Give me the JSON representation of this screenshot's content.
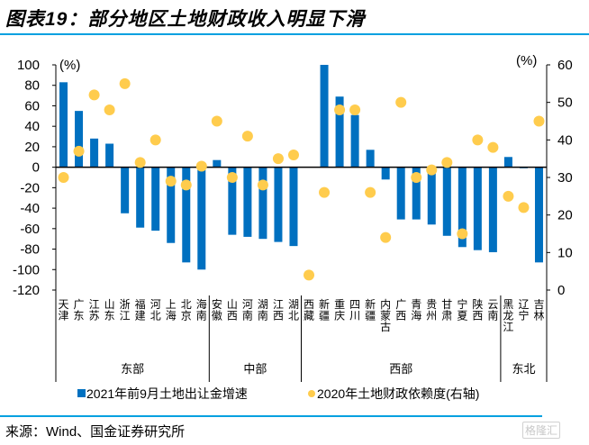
{
  "title": {
    "prefix": "图表",
    "number": "19",
    "text": "：部分地区土地财政收入明显下滑"
  },
  "source": "来源：Wind、国金证券研究所",
  "watermark": "格隆汇",
  "colors": {
    "bar": "#0070c0",
    "dot": "#ffcc4d",
    "accent_rule": "#00a0e0"
  },
  "chart_data": {
    "type": "bar",
    "title": "部分地区土地财政收入明显下滑",
    "categories": [
      "天津",
      "广东",
      "江苏",
      "山东",
      "浙江",
      "福建",
      "河北",
      "上海",
      "北京",
      "海南",
      "安徽",
      "山西",
      "河南",
      "湖南",
      "江西",
      "湖北",
      "西藏",
      "新疆兵团",
      "重庆",
      "四川",
      "新疆",
      "内蒙古",
      "广西",
      "青海",
      "贵州",
      "甘肃",
      "宁夏",
      "陕西",
      "云南",
      "黑龙江",
      "辽宁",
      "吉林"
    ],
    "category_labels": [
      "天津",
      "广东",
      "江苏",
      "山东",
      "浙江",
      "福建",
      "河北",
      "上海",
      "北京",
      "海南",
      "安徽",
      "山西",
      "河南",
      "湖南",
      "江西",
      "湖北",
      "西藏",
      "新疆",
      "重庆",
      "四川",
      "新疆",
      "内蒙古",
      "广西",
      "青海",
      "贵州",
      "甘肃",
      "宁夏",
      "陕西",
      "云南",
      "黑龙江",
      "辽宁",
      "吉林"
    ],
    "groups": [
      {
        "name": "东部",
        "start": 0,
        "end": 9
      },
      {
        "name": "中部",
        "start": 10,
        "end": 15
      },
      {
        "name": "西部",
        "start": 16,
        "end": 28
      },
      {
        "name": "东北",
        "start": 29,
        "end": 31
      }
    ],
    "series": [
      {
        "name": "2021年前9月土地出让金增速",
        "type": "bar",
        "axis": "left",
        "values": [
          83,
          55,
          28,
          23,
          -45,
          -59,
          -62,
          -74,
          -93,
          -100,
          7,
          -66,
          -68,
          -70,
          -73,
          -77,
          null,
          100,
          69,
          51,
          17,
          -12,
          -51,
          -51,
          -56,
          -67,
          -78,
          -81,
          -83,
          10,
          -1,
          -93
        ]
      },
      {
        "name": "2020年土地财政依赖度(右轴)",
        "type": "scatter",
        "axis": "right",
        "values": [
          30,
          37,
          52,
          48,
          55,
          34,
          40,
          29,
          28,
          33,
          45,
          30,
          41,
          28,
          35,
          36,
          4,
          26,
          48,
          48,
          26,
          14,
          50,
          30,
          32,
          34,
          15,
          40,
          38,
          25,
          22,
          45
        ]
      }
    ],
    "y_left": {
      "label": "(%)",
      "lim": [
        -120,
        100
      ],
      "ticks": [
        100,
        80,
        60,
        40,
        20,
        0,
        -20,
        -40,
        -60,
        -80,
        -100,
        -120
      ]
    },
    "y_right": {
      "label": "(%)",
      "lim": [
        0,
        60
      ],
      "ticks": [
        60,
        50,
        40,
        30,
        20,
        10,
        0
      ]
    },
    "xlabel": "",
    "grid": false,
    "legend": {
      "placement": "bottom",
      "entries": [
        {
          "label": "2021年前9月土地出让金增速",
          "marker": "square"
        },
        {
          "label": "2020年土地财政依赖度(右轴)",
          "marker": "circle"
        }
      ]
    }
  }
}
